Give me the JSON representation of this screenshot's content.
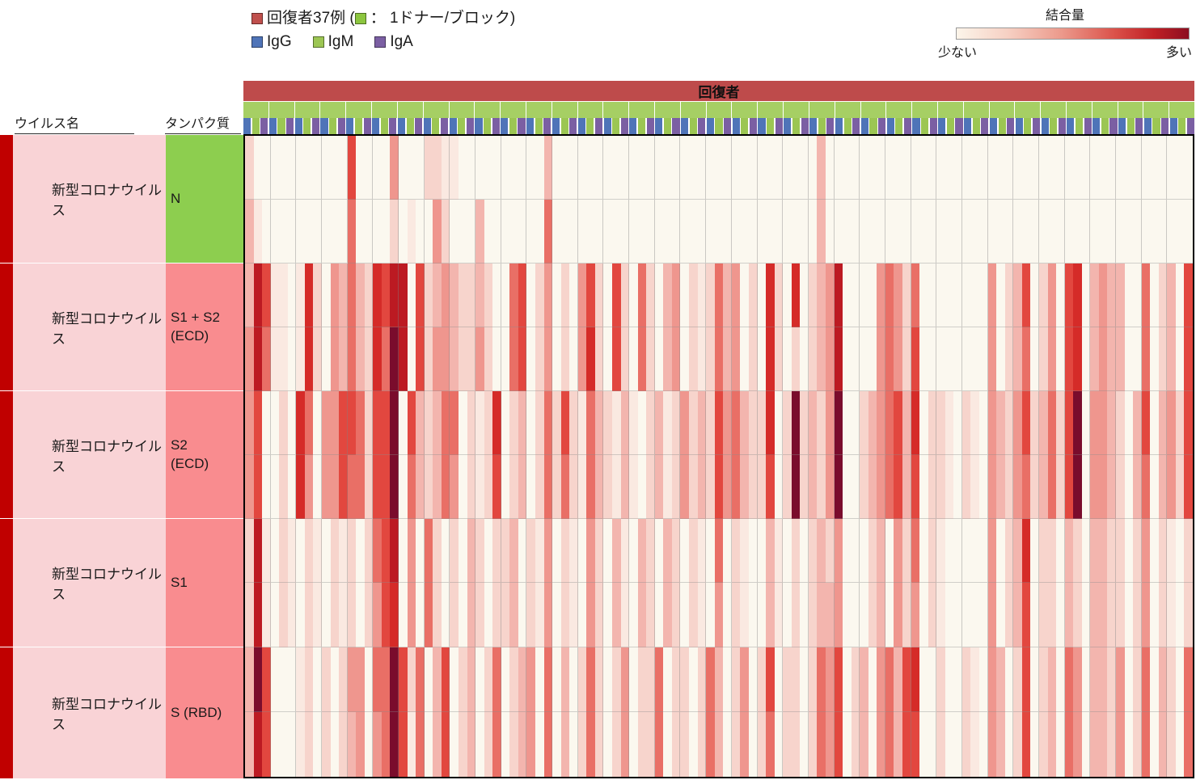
{
  "legend": {
    "cohort": "回復者37例 (",
    "donor_note": "： 1ドナー/ブロック)",
    "cohort_swatch_color": "#C0504D",
    "donor_swatch_color": "#8CC63F",
    "isotypes": [
      {
        "label": "IgG",
        "color": "#4F74B8"
      },
      {
        "label": "IgM",
        "color": "#9CC653"
      },
      {
        "label": "IgA",
        "color": "#7B5FA3"
      }
    ]
  },
  "colorbar": {
    "title": "結合量",
    "low_label": "少ない",
    "high_label": "多い"
  },
  "column_headers": {
    "virus": "ウイルス名",
    "protein": "タンパク質"
  },
  "chart_data": {
    "type": "heatmap",
    "group_label": "回復者",
    "group_bar_color": "#BE4B4B",
    "donor_block_color": "#A6CF64",
    "donors": 37,
    "isotypes": [
      "IgG",
      "IgM",
      "IgA"
    ],
    "isotype_colors": [
      "#4F74B8",
      "#9CC653",
      "#7B5FA3"
    ],
    "n_columns": 111,
    "strip_color": "#C00000",
    "virus_cell_color": "#F9D3D6",
    "palette": [
      "#FBF8EF",
      "#FAE9E1",
      "#F7D4CC",
      "#F3B5AE",
      "#EF968E",
      "#E96F66",
      "#E2473F",
      "#D52B28",
      "#BC1A22",
      "#7A0C2C"
    ],
    "palette_meaning": "0 = 少ない(low binding) … 9 = 多い(high binding)",
    "rows": [
      {
        "virus": "新型コロナウイルス",
        "protein_label": "N",
        "protein_color": "#8DCE4F",
        "cells_top": "200000000000600004000221100000000003000000000000000000000000000000030000000000000000000000000000000000000000000",
        "cells_bottom": "310000000000500002010042000300000005000000000000000000000000000000030000000000000000000000000000000000000000000"
      },
      {
        "virus": "新型コロナウイルス",
        "protein_label": "S1 + S2\n(ECD)",
        "protein_color": "#F98C8F",
        "cells_top": "386110172043532768806234322320056024020462062052034021253402072070234800004542500000000402360240670343300502306",
        "cells_bottom": "485110172043532759806244322420056024020472062052034021253402072020234800004542600000000402350240670343300502306"
      },
      {
        "virus": "新型コロナウイルス",
        "protein_label": "S2\n(ECD)",
        "protein_color": "#F98C8F",
        "cells_top": "460020750446652669063235502127023025262153213102312423264532270292324900234563702210210432462352690443203603426",
        "cells_bottom": "460020740446552669053235402126023025252153213102312423264532260292324900234563602210210432452352690443203503426"
      },
      {
        "virus": "新型コロナウイルス",
        "protein_label": "S1",
        "protein_color": "#F98C8F",
        "cells_top": "281021021021202568040520203202230214021042031032032021050210031020232400023042502100000402370220320332202402102",
        "cells_bottom": "281021021021202467040520203202230214021042031032032021040210031020233400023042402100000402360220320332202402102"
      },
      {
        "virus": "新型コロナウイルス",
        "protein_label": "S (RBD)",
        "protein_color": "#F98C8F",
        "cells_top": "396000120202440559625036023025023405030252024022502202530240260220254602304536700200210430260230540332402503205",
        "cells_bottom": "386000120202340459615036023025023405030252024022502202530240250220254602304536600200210430260230540332402503205"
      }
    ]
  }
}
